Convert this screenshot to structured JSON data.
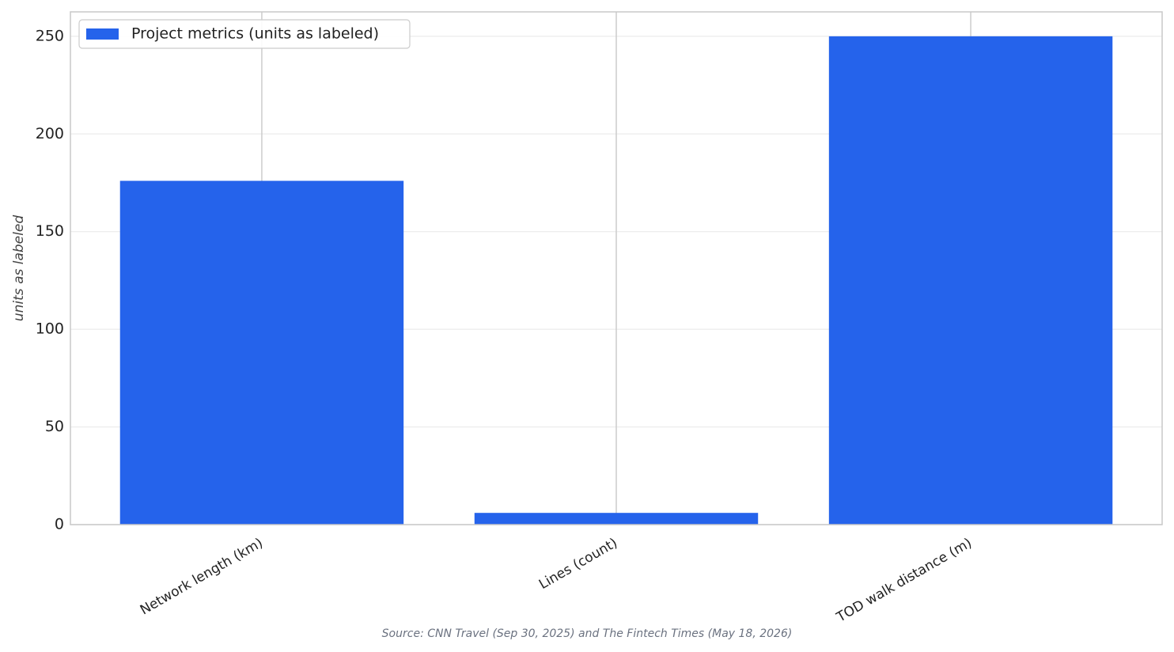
{
  "chart_data": {
    "type": "bar",
    "categories": [
      "Network length (km)",
      "Lines (count)",
      "TOD walk distance (m)"
    ],
    "series": [
      {
        "name": "Project metrics (units as labeled)",
        "color": "#2563eb",
        "values": [
          176,
          6,
          250
        ]
      }
    ],
    "y_label": "units as labeled",
    "source": "Source: CNN Travel (Sep 30, 2025) and The Fintech Times (May 18, 2026)",
    "ylim": [
      0,
      262.5
    ],
    "yticks": [
      0,
      50,
      100,
      150,
      200,
      250
    ],
    "grid": true,
    "legend": "upper-left"
  }
}
